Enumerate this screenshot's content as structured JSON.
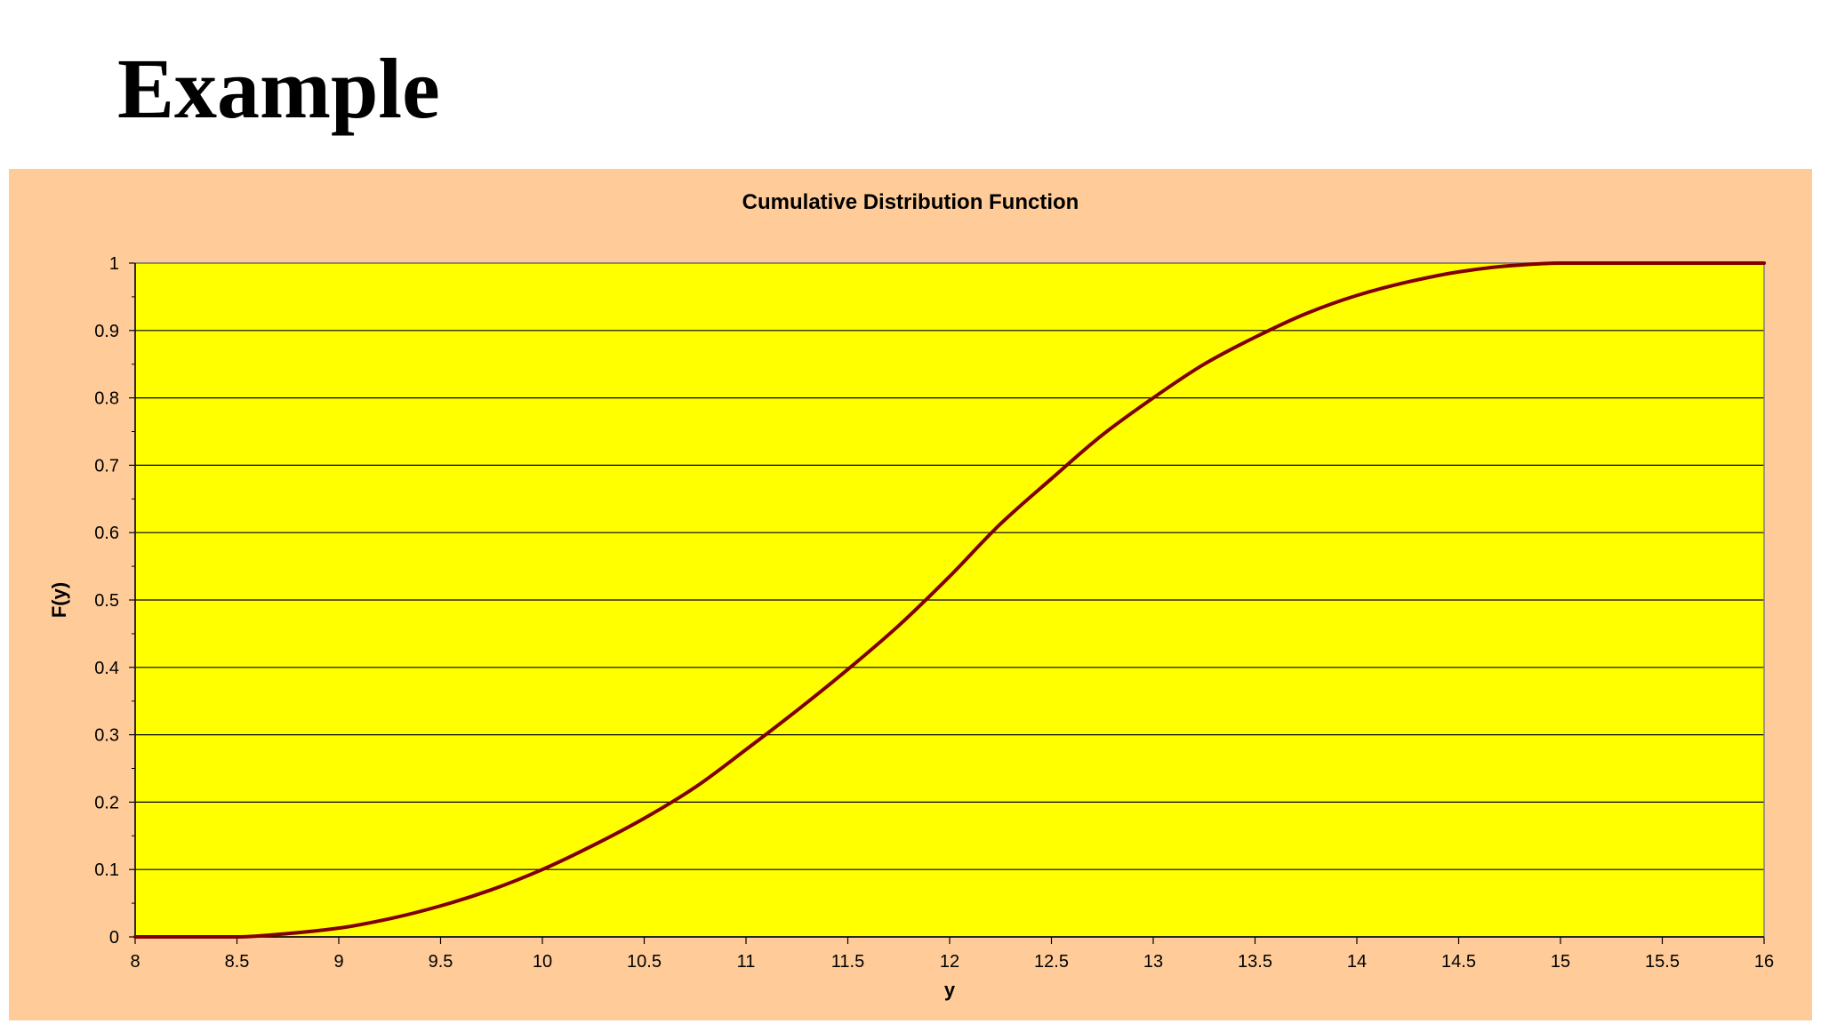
{
  "slide": {
    "title": "Example"
  },
  "colors": {
    "panel_background": "#FFCC99",
    "plot_background": "#FFFF00",
    "curve": "#800000",
    "gridline": "#000000"
  },
  "chart_data": {
    "type": "line",
    "title": "Cumulative Distribution Function",
    "xlabel": "y",
    "ylabel": "F(y)",
    "xlim": [
      8,
      16
    ],
    "ylim": [
      0,
      1
    ],
    "grid": "horizontal",
    "legend": "none",
    "x_ticks": [
      "8",
      "8.5",
      "9",
      "9.5",
      "10",
      "10.5",
      "11",
      "11.5",
      "12",
      "12.5",
      "13",
      "13.5",
      "14",
      "14.5",
      "15",
      "15.5",
      "16"
    ],
    "y_ticks": [
      "0",
      "0.1",
      "0.2",
      "0.3",
      "0.4",
      "0.5",
      "0.6",
      "0.7",
      "0.8",
      "0.9",
      "1"
    ],
    "series": [
      {
        "x": [
          8,
          8.5,
          8.75,
          9,
          9.25,
          9.5,
          9.75,
          10,
          10.25,
          10.5,
          10.75,
          11,
          11.25,
          11.5,
          11.75,
          12,
          12.25,
          12.5,
          12.75,
          13,
          13.25,
          13.5,
          13.75,
          14,
          14.25,
          14.5,
          14.75,
          15,
          15.5,
          16
        ],
        "y": [
          0,
          0,
          0.005,
          0.013,
          0.027,
          0.046,
          0.07,
          0.1,
          0.136,
          0.176,
          0.222,
          0.278,
          0.336,
          0.397,
          0.462,
          0.535,
          0.613,
          0.68,
          0.745,
          0.8,
          0.85,
          0.89,
          0.925,
          0.952,
          0.972,
          0.987,
          0.996,
          1,
          1,
          1
        ]
      }
    ]
  }
}
